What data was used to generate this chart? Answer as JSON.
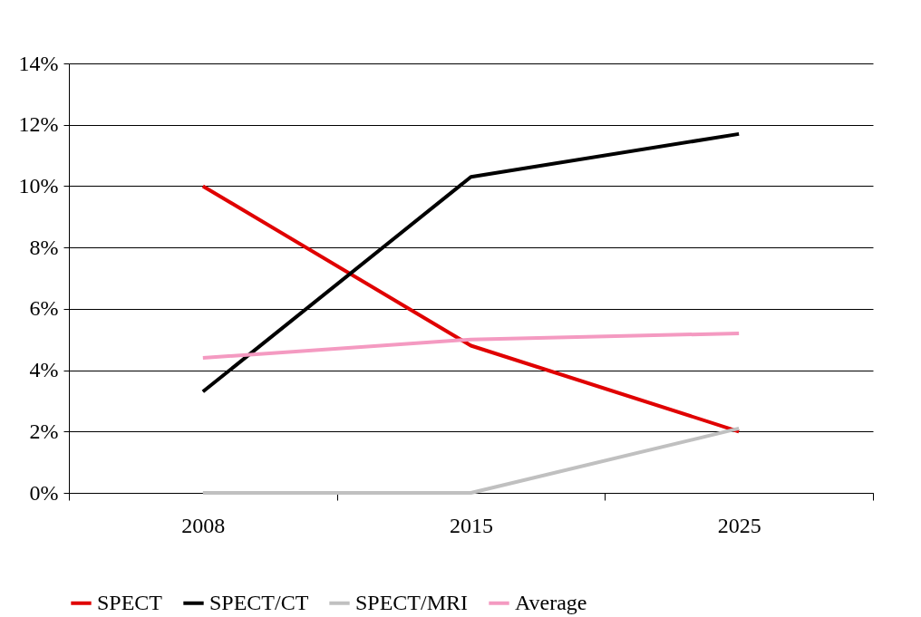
{
  "chart_data": {
    "type": "line",
    "categories": [
      "2008",
      "2015",
      "2025"
    ],
    "series": [
      {
        "name": "SPECT",
        "color": "#e00000",
        "values": [
          10.0,
          4.8,
          2.0
        ]
      },
      {
        "name": "SPECT/CT",
        "color": "#000000",
        "values": [
          3.3,
          10.3,
          11.7
        ]
      },
      {
        "name": "SPECT/MRI",
        "color": "#c0c0c0",
        "values": [
          0,
          0,
          2.1
        ]
      },
      {
        "name": "Average",
        "color": "#f49ac1",
        "values": [
          4.4,
          5.0,
          5.2
        ]
      }
    ],
    "ylim": [
      0,
      14
    ],
    "yticks": [
      {
        "value": 0,
        "label": "0%"
      },
      {
        "value": 2,
        "label": "2%"
      },
      {
        "value": 4,
        "label": "4%"
      },
      {
        "value": 6,
        "label": "6%"
      },
      {
        "value": 8,
        "label": "8%"
      },
      {
        "value": 10,
        "label": "10%"
      },
      {
        "value": 12,
        "label": "12%"
      },
      {
        "value": 14,
        "label": "14%"
      }
    ],
    "grid": "y",
    "legend": "bottom",
    "marker": "none",
    "line_style": "solid"
  }
}
